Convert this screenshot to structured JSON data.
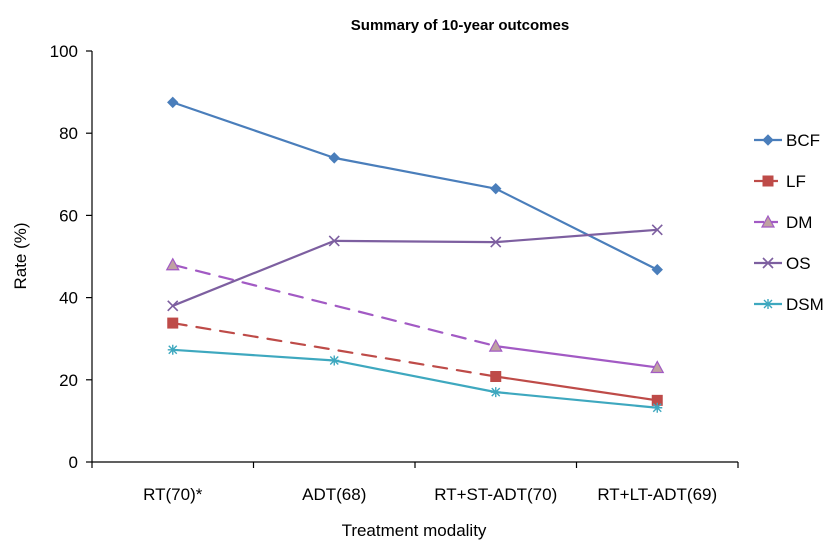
{
  "chart_data": {
    "type": "line",
    "title": "Summary of 10-year outcomes",
    "xlabel": "Treatment modality",
    "ylabel": "Rate (%)",
    "categories": [
      "RT(70)*",
      "ADT(68)",
      "RT+ST-ADT(70)",
      "RT+LT-ADT(69)"
    ],
    "ylim": [
      0,
      100
    ],
    "yticks": [
      0,
      20,
      40,
      60,
      80,
      100
    ],
    "grid": false,
    "legend_position": "right",
    "series": [
      {
        "name": "BCF",
        "values": [
          87.5,
          74,
          66.5,
          46.8
        ],
        "color": "#4a7ebb",
        "marker": "diamond",
        "segments": [
          "solid",
          "solid",
          "solid"
        ]
      },
      {
        "name": "LF",
        "values": [
          33.8,
          null,
          20.8,
          15
        ],
        "color": "#be4b48",
        "marker": "square",
        "segments": [
          "dashed",
          "dashed",
          "solid"
        ],
        "legend_line": "dashed"
      },
      {
        "name": "DM",
        "values": [
          48,
          null,
          28.2,
          23
        ],
        "color": "#a25ac4",
        "marker": "triangle",
        "segments": [
          "dashed",
          "dashed",
          "solid"
        ],
        "legend_line": "dashed"
      },
      {
        "name": "OS",
        "values": [
          38,
          53.8,
          53.5,
          56.5
        ],
        "color": "#7d5fa0",
        "marker": "x",
        "segments": [
          "solid",
          "solid",
          "solid"
        ]
      },
      {
        "name": "DSM",
        "values": [
          27.3,
          24.7,
          17,
          13.2
        ],
        "color": "#3ea8bf",
        "marker": "star",
        "segments": [
          "solid",
          "solid",
          "solid"
        ]
      }
    ]
  }
}
